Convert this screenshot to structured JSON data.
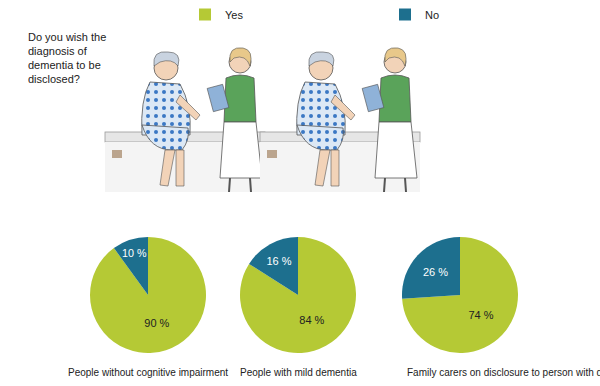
{
  "question": "Do you wish the diagnosis of dementia to be disclosed?",
  "chart_data": [
    {
      "type": "pie",
      "title": "People without cognitive impairment",
      "categories": [
        "Yes",
        "No"
      ],
      "values": [
        90,
        10
      ],
      "value_labels": [
        "90 %",
        "10 %"
      ],
      "colors": [
        "#b5c935",
        "#1d6f8e"
      ],
      "data_labels": true,
      "legend": "top"
    },
    {
      "type": "pie",
      "title": "People with mild dementia",
      "categories": [
        "Yes",
        "No"
      ],
      "values": [
        84,
        16
      ],
      "value_labels": [
        "84 %",
        "16 %"
      ],
      "colors": [
        "#b5c935",
        "#1d6f8e"
      ],
      "data_labels": true,
      "legend": "top"
    },
    {
      "type": "pie",
      "title": "Family carers on disclosure to person with dementia",
      "categories": [
        "Yes",
        "No"
      ],
      "values": [
        74,
        26
      ],
      "value_labels": [
        "74 %",
        "26 %"
      ],
      "colors": [
        "#b5c935",
        "#1d6f8e"
      ],
      "data_labels": true,
      "legend": "top"
    }
  ]
}
